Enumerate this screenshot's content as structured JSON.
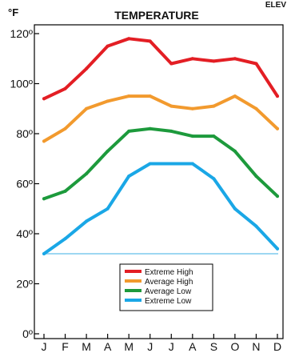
{
  "chart_data": {
    "type": "line",
    "title": "TEMPERATURE",
    "ylabel": "°F",
    "corner_text": "ELEV",
    "categories": [
      "J",
      "F",
      "M",
      "A",
      "M",
      "J",
      "J",
      "A",
      "S",
      "O",
      "N",
      "D"
    ],
    "ylim": [
      0,
      125
    ],
    "yticks": [
      0,
      20,
      40,
      60,
      80,
      100,
      120
    ],
    "ytick_labels": [
      "0º",
      "20º",
      "40º",
      "60º",
      "80º",
      "100º",
      "120º"
    ],
    "reference_line": 32,
    "grid": false,
    "legend_position": "bottom-center",
    "series": [
      {
        "name": "Extreme High",
        "color": "#e31e24",
        "values": [
          94,
          98,
          106,
          115,
          118,
          117,
          108,
          110,
          109,
          110,
          108,
          95
        ]
      },
      {
        "name": "Average High",
        "color": "#f29a2e",
        "values": [
          77,
          82,
          90,
          93,
          95,
          95,
          91,
          90,
          91,
          95,
          90,
          82
        ]
      },
      {
        "name": "Average Low",
        "color": "#1d9a3c",
        "values": [
          54,
          57,
          64,
          73,
          81,
          82,
          81,
          79,
          79,
          73,
          63,
          55
        ]
      },
      {
        "name": "Extreme Low",
        "color": "#1aa7e6",
        "values": [
          32,
          38,
          45,
          50,
          63,
          68,
          68,
          68,
          62,
          50,
          43,
          34
        ]
      }
    ],
    "reference_color": "#9dd7f2"
  }
}
